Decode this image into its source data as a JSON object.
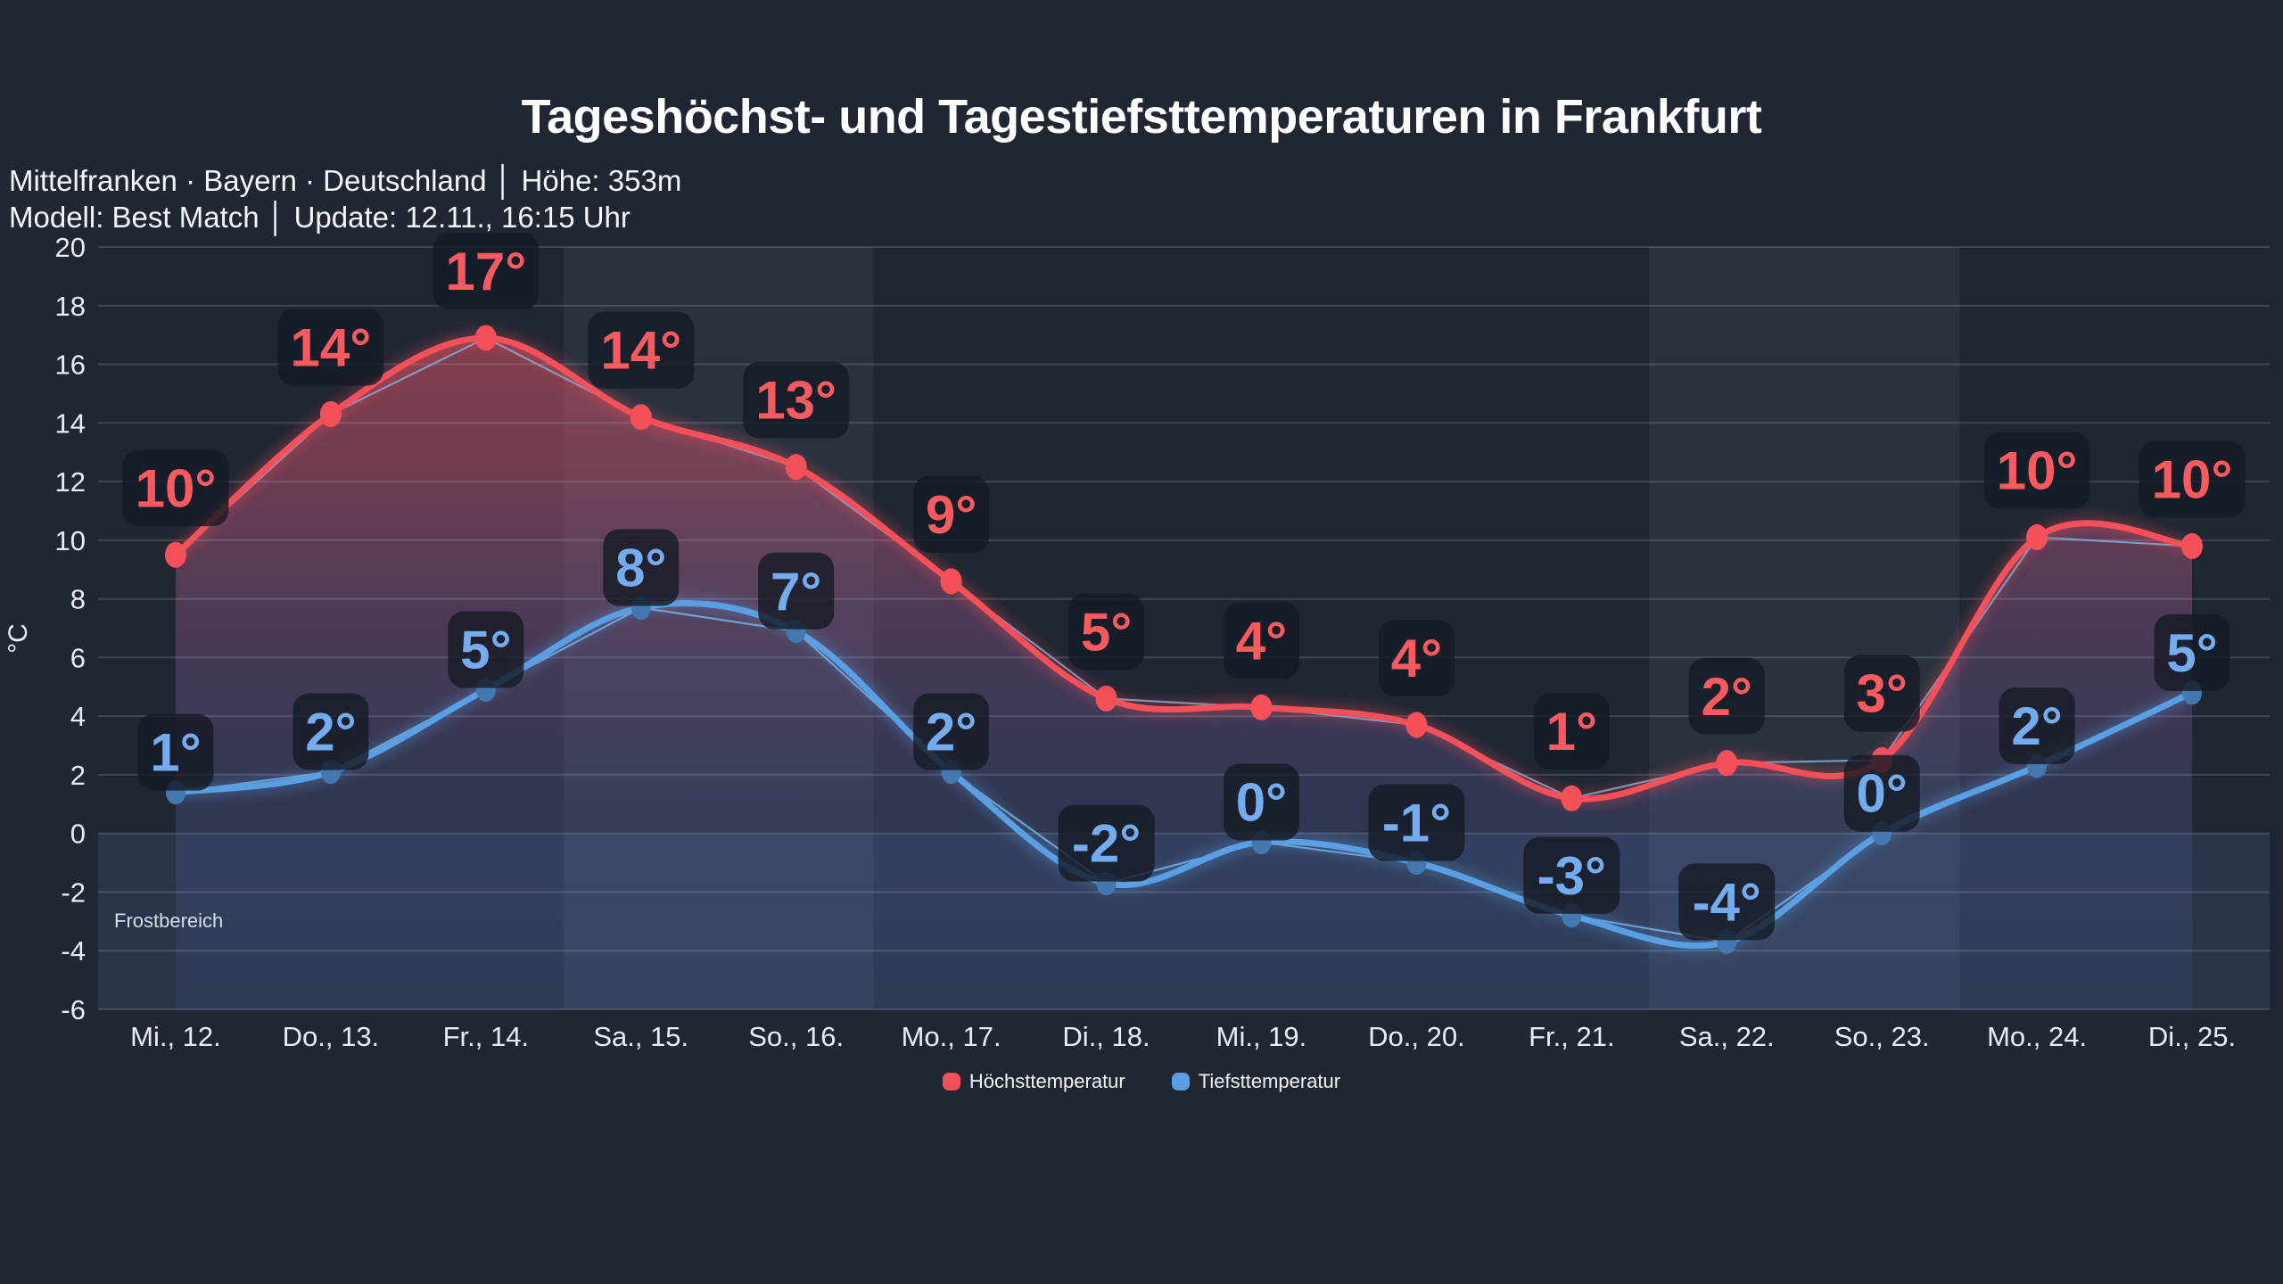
{
  "header": {
    "title": "Tageshöchst- und Tagestiefsttemperaturen in Frankfurt",
    "subtitle_line1": "Mittelfranken · Bayern · Deutschland │ Höhe: 353m",
    "subtitle_line2": "Modell: Best Match │ Update: 12.11., 16:15 Uhr"
  },
  "chart_data": {
    "type": "line",
    "title": "Tageshöchst- und Tagestiefsttemperaturen in Frankfurt",
    "xlabel": "",
    "ylabel": "°C",
    "ylim": [
      -6,
      20
    ],
    "ytick_step": 2,
    "yticks": [
      20,
      18,
      16,
      14,
      12,
      10,
      8,
      6,
      4,
      2,
      0,
      -2,
      -4,
      -6
    ],
    "grid": true,
    "legend_position": "bottom",
    "categories": [
      "Mi., 12.",
      "Do., 13.",
      "Fr., 14.",
      "Sa., 15.",
      "So., 16.",
      "Mo., 17.",
      "Di., 18.",
      "Mi., 19.",
      "Do., 20.",
      "Fr., 21.",
      "Sa., 22.",
      "So., 23.",
      "Mo., 24.",
      "Di., 25."
    ],
    "series": [
      {
        "name": "Höchsttemperatur",
        "color": "#f4505a",
        "label_color": "#f75b60",
        "dot_color": "#f4505a",
        "labels": [
          "10°",
          "14°",
          "17°",
          "14°",
          "13°",
          "9°",
          "5°",
          "4°",
          "4°",
          "1°",
          "2°",
          "3°",
          "10°",
          "10°"
        ],
        "values": [
          9.5,
          14.3,
          16.9,
          14.2,
          12.5,
          8.6,
          4.6,
          4.3,
          3.7,
          1.2,
          2.4,
          2.5,
          10.1,
          9.8
        ]
      },
      {
        "name": "Tiefsttemperatur",
        "color": "#5a9ee3",
        "label_color": "#74acee",
        "dot_color": "#4678b0",
        "labels": [
          "1°",
          "2°",
          "5°",
          "8°",
          "7°",
          "2°",
          "-2°",
          "0°",
          "-1°",
          "-3°",
          "-4°",
          "0°",
          "2°",
          "5°"
        ],
        "values": [
          1.4,
          2.1,
          4.9,
          7.7,
          6.9,
          2.1,
          -1.7,
          -0.3,
          -1.0,
          -2.8,
          -3.7,
          0.0,
          2.3,
          4.8
        ]
      }
    ],
    "annotations": {
      "frost_label": "Frostbereich",
      "frost_range": [
        0,
        -6
      ]
    },
    "weekend_band_day_indices": [
      [
        3,
        4
      ],
      [
        10,
        11
      ]
    ],
    "colors": {
      "page_background": "#202733",
      "weekend_band": "#2a3240",
      "frost_band": "rgba(120,165,255,0.10)",
      "gridline": "rgba(190,200,216,0.20)",
      "axis_text": "#e9edf3",
      "badge_background": "rgba(22,27,38,0.82)",
      "thin_prior_run_line": "#7db3e0",
      "area_gradient_top": "rgba(244,84,91,0.55)",
      "area_gradient_bottom": "rgba(90,115,195,0.10)"
    }
  }
}
